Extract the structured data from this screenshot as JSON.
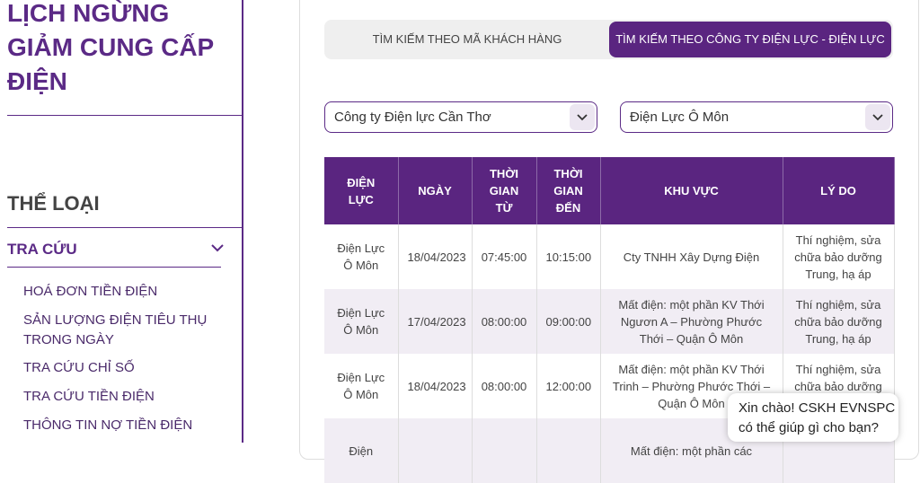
{
  "sidebar": {
    "title": "LỊCH NGỪNG GIẢM CUNG CẤP ĐIỆN",
    "category_heading": "THỂ LOẠI",
    "section": "TRA CỨU",
    "menu": [
      "HOÁ ĐƠN TIỀN ĐIỆN",
      "SẢN LƯỢNG ĐIỆN TIÊU THỤ TRONG NGÀY",
      "TRA CỨU CHỈ SỐ",
      "TRA CỨU TIỀN ĐIỆN",
      "THÔNG TIN NỢ TIỀN ĐIỆN"
    ]
  },
  "tabs": [
    "TÌM KIẾM THEO MÃ KHÁCH HÀNG",
    "TÌM KIẾM THEO CÔNG TY ĐIỆN LỰC - ĐIỆN LỰC"
  ],
  "selects": [
    "Công ty Điện lực Cần Thơ",
    "Điện Lực Ô Môn"
  ],
  "table": {
    "headers": [
      "ĐIỆN LỰC",
      "NGÀY",
      "THỜI GIAN TỪ",
      "THỜI GIAN ĐẾN",
      "KHU VỰC",
      "LÝ DO"
    ],
    "rows": [
      [
        "Điện Lực Ô Môn",
        "18/04/2023",
        "07:45:00",
        "10:15:00",
        "Cty TNHH Xây Dựng Điện",
        "Thí nghiệm, sửa chữa bảo dưỡng Trung, hạ áp"
      ],
      [
        "Điện Lực Ô Môn",
        "17/04/2023",
        "08:00:00",
        "09:00:00",
        "Mất điện: một phần KV Thới Ngươn A – Phường Phước Thới – Quận Ô Môn",
        "Thí nghiệm, sửa chữa bảo dưỡng Trung, hạ áp"
      ],
      [
        "Điện Lực Ô Môn",
        "18/04/2023",
        "08:00:00",
        "12:00:00",
        "Mất điện: một phần KV Thới Trinh – Phường Phước Thới – Quận Ô Môn",
        "Thí nghiệm, sửa chữa bảo dưỡng Trung, hạ áp"
      ],
      {
        "0": "Điện",
        "4": "Mất điện: một phần các"
      }
    ]
  },
  "chat": "Xin chào! CSKH EVNSPC có thể giúp gì cho bạn?"
}
